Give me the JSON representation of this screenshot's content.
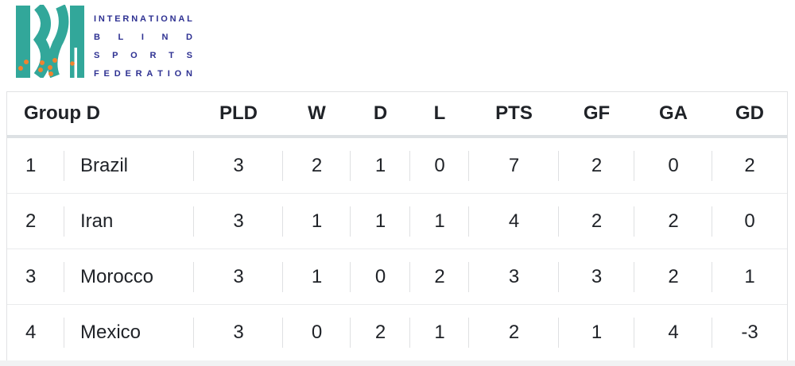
{
  "logo": {
    "lines": [
      "INTERNATIONAL",
      "BLIND",
      "SPORTS",
      "FEDERATION"
    ],
    "teal": "#32A79A",
    "orange": "#F0832F",
    "navy": "#2E3192"
  },
  "table": {
    "title": "Group D",
    "columns": [
      "PLD",
      "W",
      "D",
      "L",
      "PTS",
      "GF",
      "GA",
      "GD"
    ],
    "rows": [
      {
        "rank": "1",
        "team": "Brazil",
        "pld": "3",
        "w": "2",
        "d": "1",
        "l": "0",
        "pts": "7",
        "gf": "2",
        "ga": "0",
        "gd": "2"
      },
      {
        "rank": "2",
        "team": "Iran",
        "pld": "3",
        "w": "1",
        "d": "1",
        "l": "1",
        "pts": "4",
        "gf": "2",
        "ga": "2",
        "gd": "0"
      },
      {
        "rank": "3",
        "team": "Morocco",
        "pld": "3",
        "w": "1",
        "d": "0",
        "l": "2",
        "pts": "3",
        "gf": "3",
        "ga": "2",
        "gd": "1"
      },
      {
        "rank": "4",
        "team": "Mexico",
        "pld": "3",
        "w": "0",
        "d": "2",
        "l": "1",
        "pts": "2",
        "gf": "1",
        "ga": "4",
        "gd": "-3"
      }
    ]
  }
}
